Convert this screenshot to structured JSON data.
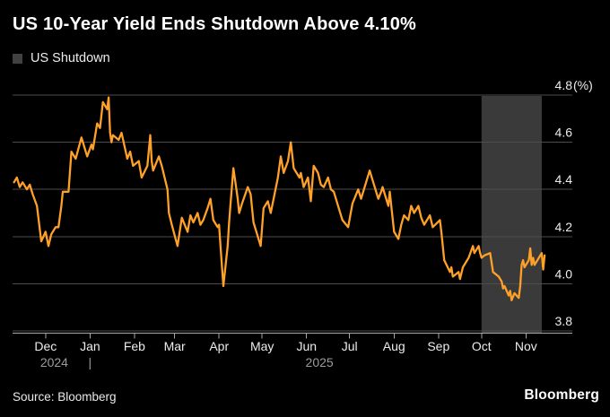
{
  "header": {
    "title": "US 10-Year Yield Ends Shutdown Above 4.10%"
  },
  "legend": {
    "label": "US Shutdown",
    "swatch_color": "#414141"
  },
  "footer": {
    "source": "Source: Bloomberg",
    "brand": "Bloomberg"
  },
  "colors": {
    "background": "#000000",
    "line": "#FFA028",
    "band": "#3A3A3A",
    "gridline": "#4D4D4D",
    "axis": "#A8A8A8",
    "axis_text": "#ECECEC",
    "year_text": "#9C9C9C"
  },
  "chart_data": {
    "type": "line",
    "title": "US 10-Year Yield Ends Shutdown Above 4.10%",
    "ylabel": "%",
    "ylim": [
      3.8,
      4.8
    ],
    "grid": true,
    "legend_position": "top-left",
    "y_axis": {
      "max": 4.8,
      "min": 3.8,
      "ticks": [
        {
          "value": 4.8,
          "label": "4.8",
          "suffix": "(%)"
        },
        {
          "value": 4.6,
          "label": "4.6",
          "suffix": ""
        },
        {
          "value": 4.4,
          "label": "4.4",
          "suffix": ""
        },
        {
          "value": 4.2,
          "label": "4.2",
          "suffix": ""
        },
        {
          "value": 4.0,
          "label": "4.0",
          "suffix": ""
        },
        {
          "value": 3.8,
          "label": "3.8",
          "suffix": ""
        }
      ]
    },
    "x_axis": {
      "month_ticks": [
        {
          "label": "Dec",
          "date": "2024-12-01"
        },
        {
          "label": "Jan",
          "date": "2025-01-01"
        },
        {
          "label": "Feb",
          "date": "2025-02-01"
        },
        {
          "label": "Mar",
          "date": "2025-03-01"
        },
        {
          "label": "Apr",
          "date": "2025-04-01"
        },
        {
          "label": "May",
          "date": "2025-05-01"
        },
        {
          "label": "Jun",
          "date": "2025-06-01"
        },
        {
          "label": "Jul",
          "date": "2025-07-01"
        },
        {
          "label": "Aug",
          "date": "2025-08-01"
        },
        {
          "label": "Sep",
          "date": "2025-09-01"
        },
        {
          "label": "Oct",
          "date": "2025-10-01"
        },
        {
          "label": "Nov",
          "date": "2025-11-01"
        }
      ],
      "year_labels": [
        {
          "text": "2024",
          "date": "2024-12-07"
        },
        {
          "text": "|",
          "date": "2025-01-01"
        },
        {
          "text": "2025",
          "date": "2025-06-10"
        }
      ]
    },
    "shutdown_band": {
      "label": "US Shutdown",
      "start": "2025-10-01",
      "end": "2025-11-12"
    },
    "series": [
      [
        "2024-11-09",
        4.43
      ],
      [
        "2024-11-11",
        4.45
      ],
      [
        "2024-11-13",
        4.41
      ],
      [
        "2024-11-15",
        4.43
      ],
      [
        "2024-11-18",
        4.4
      ],
      [
        "2024-11-20",
        4.42
      ],
      [
        "2024-11-22",
        4.38
      ],
      [
        "2024-11-25",
        4.33
      ],
      [
        "2024-11-26",
        4.28
      ],
      [
        "2024-11-28",
        4.18
      ],
      [
        "2024-12-01",
        4.22
      ],
      [
        "2024-12-03",
        4.16
      ],
      [
        "2024-12-05",
        4.21
      ],
      [
        "2024-12-08",
        4.24
      ],
      [
        "2024-12-10",
        4.24
      ],
      [
        "2024-12-12",
        4.33
      ],
      [
        "2024-12-13",
        4.39
      ],
      [
        "2024-12-17",
        4.39
      ],
      [
        "2024-12-19",
        4.56
      ],
      [
        "2024-12-22",
        4.53
      ],
      [
        "2024-12-26",
        4.62
      ],
      [
        "2024-12-30",
        4.54
      ],
      [
        "2025-01-02",
        4.59
      ],
      [
        "2025-01-03",
        4.57
      ],
      [
        "2025-01-06",
        4.68
      ],
      [
        "2025-01-08",
        4.66
      ],
      [
        "2025-01-10",
        4.77
      ],
      [
        "2025-01-13",
        4.74
      ],
      [
        "2025-01-14",
        4.79
      ],
      [
        "2025-01-15",
        4.64
      ],
      [
        "2025-01-16",
        4.6
      ],
      [
        "2025-01-17",
        4.63
      ],
      [
        "2025-01-21",
        4.61
      ],
      [
        "2025-01-23",
        4.64
      ],
      [
        "2025-01-27",
        4.53
      ],
      [
        "2025-01-29",
        4.56
      ],
      [
        "2025-01-31",
        4.5
      ],
      [
        "2025-02-04",
        4.52
      ],
      [
        "2025-02-06",
        4.45
      ],
      [
        "2025-02-10",
        4.5
      ],
      [
        "2025-02-12",
        4.63
      ],
      [
        "2025-02-13",
        4.52
      ],
      [
        "2025-02-14",
        4.48
      ],
      [
        "2025-02-18",
        4.54
      ],
      [
        "2025-02-20",
        4.5
      ],
      [
        "2025-02-24",
        4.4
      ],
      [
        "2025-02-25",
        4.3
      ],
      [
        "2025-02-27",
        4.25
      ],
      [
        "2025-03-03",
        4.16
      ],
      [
        "2025-03-06",
        4.28
      ],
      [
        "2025-03-10",
        4.22
      ],
      [
        "2025-03-12",
        4.29
      ],
      [
        "2025-03-14",
        4.26
      ],
      [
        "2025-03-17",
        4.3
      ],
      [
        "2025-03-19",
        4.25
      ],
      [
        "2025-03-21",
        4.27
      ],
      [
        "2025-03-24",
        4.32
      ],
      [
        "2025-03-26",
        4.36
      ],
      [
        "2025-03-28",
        4.27
      ],
      [
        "2025-03-31",
        4.24
      ],
      [
        "2025-04-01",
        4.25
      ],
      [
        "2025-04-02",
        4.16
      ],
      [
        "2025-04-04",
        3.99
      ],
      [
        "2025-04-07",
        4.16
      ],
      [
        "2025-04-08",
        4.26
      ],
      [
        "2025-04-09",
        4.34
      ],
      [
        "2025-04-11",
        4.49
      ],
      [
        "2025-04-14",
        4.36
      ],
      [
        "2025-04-15",
        4.3
      ],
      [
        "2025-04-17",
        4.34
      ],
      [
        "2025-04-21",
        4.41
      ],
      [
        "2025-04-23",
        4.38
      ],
      [
        "2025-04-25",
        4.26
      ],
      [
        "2025-04-28",
        4.2
      ],
      [
        "2025-04-30",
        4.16
      ],
      [
        "2025-05-02",
        4.32
      ],
      [
        "2025-05-05",
        4.35
      ],
      [
        "2025-05-07",
        4.3
      ],
      [
        "2025-05-12",
        4.45
      ],
      [
        "2025-05-14",
        4.54
      ],
      [
        "2025-05-16",
        4.47
      ],
      [
        "2025-05-19",
        4.52
      ],
      [
        "2025-05-21",
        4.6
      ],
      [
        "2025-05-23",
        4.49
      ],
      [
        "2025-05-27",
        4.45
      ],
      [
        "2025-05-28",
        4.47
      ],
      [
        "2025-05-30",
        4.41
      ],
      [
        "2025-06-02",
        4.45
      ],
      [
        "2025-06-04",
        4.35
      ],
      [
        "2025-06-06",
        4.5
      ],
      [
        "2025-06-09",
        4.47
      ],
      [
        "2025-06-11",
        4.42
      ],
      [
        "2025-06-13",
        4.41
      ],
      [
        "2025-06-16",
        4.45
      ],
      [
        "2025-06-18",
        4.4
      ],
      [
        "2025-06-20",
        4.39
      ],
      [
        "2025-06-24",
        4.31
      ],
      [
        "2025-06-26",
        4.27
      ],
      [
        "2025-06-30",
        4.24
      ],
      [
        "2025-07-03",
        4.34
      ],
      [
        "2025-07-07",
        4.4
      ],
      [
        "2025-07-09",
        4.36
      ],
      [
        "2025-07-15",
        4.48
      ],
      [
        "2025-07-17",
        4.44
      ],
      [
        "2025-07-21",
        4.36
      ],
      [
        "2025-07-23",
        4.39
      ],
      [
        "2025-07-24",
        4.41
      ],
      [
        "2025-07-28",
        4.33
      ],
      [
        "2025-07-29",
        4.39
      ],
      [
        "2025-08-01",
        4.22
      ],
      [
        "2025-08-04",
        4.19
      ],
      [
        "2025-08-06",
        4.25
      ],
      [
        "2025-08-08",
        4.29
      ],
      [
        "2025-08-11",
        4.27
      ],
      [
        "2025-08-13",
        4.33
      ],
      [
        "2025-08-15",
        4.3
      ],
      [
        "2025-08-18",
        4.33
      ],
      [
        "2025-08-20",
        4.28
      ],
      [
        "2025-08-22",
        4.25
      ],
      [
        "2025-08-26",
        4.29
      ],
      [
        "2025-08-28",
        4.24
      ],
      [
        "2025-09-02",
        4.27
      ],
      [
        "2025-09-03",
        4.22
      ],
      [
        "2025-09-05",
        4.1
      ],
      [
        "2025-09-09",
        4.05
      ],
      [
        "2025-09-10",
        4.07
      ],
      [
        "2025-09-11",
        4.03
      ],
      [
        "2025-09-15",
        4.05
      ],
      [
        "2025-09-16",
        4.02
      ],
      [
        "2025-09-18",
        4.07
      ],
      [
        "2025-09-22",
        4.11
      ],
      [
        "2025-09-25",
        4.16
      ],
      [
        "2025-09-26",
        4.13
      ],
      [
        "2025-09-29",
        4.16
      ],
      [
        "2025-09-30",
        4.13
      ],
      [
        "2025-10-01",
        4.11
      ],
      [
        "2025-10-03",
        4.12
      ],
      [
        "2025-10-07",
        4.13
      ],
      [
        "2025-10-09",
        4.05
      ],
      [
        "2025-10-13",
        4.03
      ],
      [
        "2025-10-15",
        4.01
      ],
      [
        "2025-10-16",
        3.98
      ],
      [
        "2025-10-17",
        3.99
      ],
      [
        "2025-10-20",
        3.95
      ],
      [
        "2025-10-21",
        3.97
      ],
      [
        "2025-10-22",
        3.93
      ],
      [
        "2025-10-24",
        3.96
      ],
      [
        "2025-10-27",
        3.94
      ],
      [
        "2025-10-28",
        3.99
      ],
      [
        "2025-10-29",
        4.08
      ],
      [
        "2025-10-30",
        4.1
      ],
      [
        "2025-10-31",
        4.07
      ],
      [
        "2025-11-03",
        4.1
      ],
      [
        "2025-11-04",
        4.15
      ],
      [
        "2025-11-05",
        4.08
      ],
      [
        "2025-11-06",
        4.11
      ],
      [
        "2025-11-07",
        4.08
      ],
      [
        "2025-11-10",
        4.11
      ],
      [
        "2025-11-12",
        4.13
      ],
      [
        "2025-11-13",
        4.06
      ],
      [
        "2025-11-14",
        4.12
      ]
    ]
  }
}
